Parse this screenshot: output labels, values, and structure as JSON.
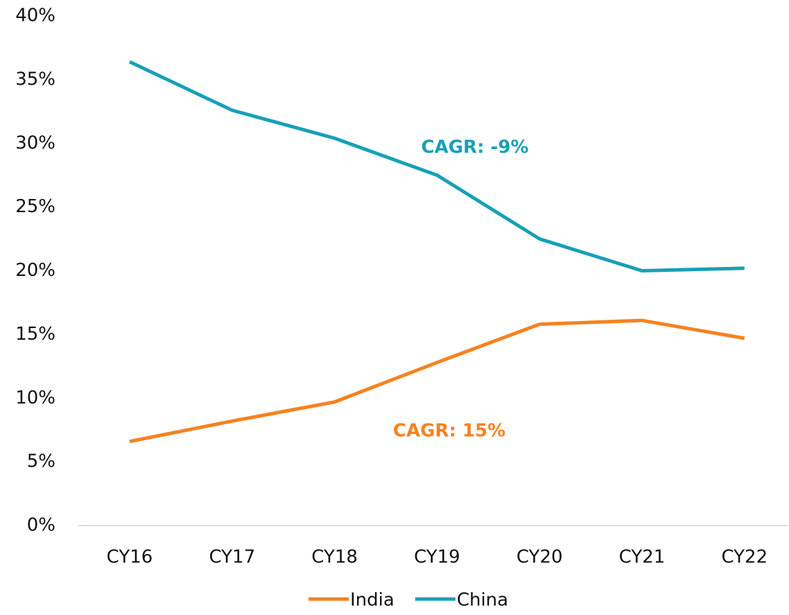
{
  "chart_data": {
    "type": "line",
    "categories": [
      "CY16",
      "CY17",
      "CY18",
      "CY19",
      "CY20",
      "CY21",
      "CY22"
    ],
    "series": [
      {
        "name": "India",
        "color": "#f58220",
        "values": [
          6.6,
          8.2,
          9.7,
          12.8,
          15.8,
          16.1,
          14.7
        ]
      },
      {
        "name": "China",
        "color": "#17a0b7",
        "values": [
          36.4,
          32.6,
          30.4,
          27.5,
          22.5,
          20.0,
          20.2
        ]
      }
    ],
    "annotations": [
      {
        "text": "CAGR: -9%",
        "series": 1
      },
      {
        "text": "CAGR: 15%",
        "series": 0
      }
    ],
    "ylim": [
      0,
      40
    ],
    "yticks": [
      {
        "value": 0,
        "label": "0%"
      },
      {
        "value": 5,
        "label": "5%"
      },
      {
        "value": 10,
        "label": "10%"
      },
      {
        "value": 15,
        "label": "15%"
      },
      {
        "value": 20,
        "label": "20%"
      },
      {
        "value": 25,
        "label": "25%"
      },
      {
        "value": 30,
        "label": "30%"
      },
      {
        "value": 35,
        "label": "35%"
      },
      {
        "value": 40,
        "label": "40%"
      }
    ],
    "grid": false,
    "legend": "bottom"
  }
}
